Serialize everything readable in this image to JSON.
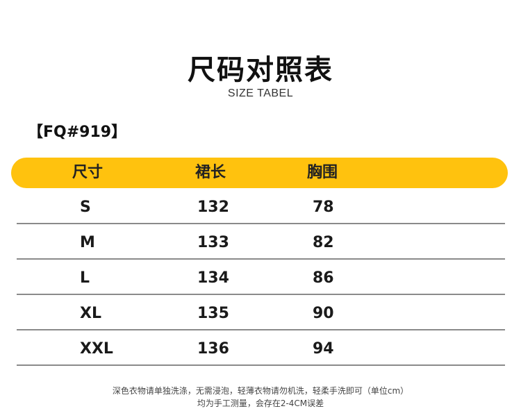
{
  "title": "尺码对照表",
  "subtitle": "SIZE TABEL",
  "model": "【FQ#919】",
  "header": {
    "col1": "尺寸",
    "col2": "裙长",
    "col3": "胸围",
    "bar_color": "#FFC20E"
  },
  "rows": [
    {
      "size": "S",
      "length": "132",
      "bust": "78"
    },
    {
      "size": "M",
      "length": "133",
      "bust": "82"
    },
    {
      "size": "L",
      "length": "134",
      "bust": "86"
    },
    {
      "size": "XL",
      "length": "135",
      "bust": "90"
    },
    {
      "size": "XXL",
      "length": "136",
      "bust": "94"
    }
  ],
  "notes": {
    "line1": "深色衣物请单独洗涤，无需浸泡，轻薄衣物请勿机洗，轻柔手洗即可（单位cm）",
    "line2": "均为手工测量，会存在2-4CM误差"
  }
}
